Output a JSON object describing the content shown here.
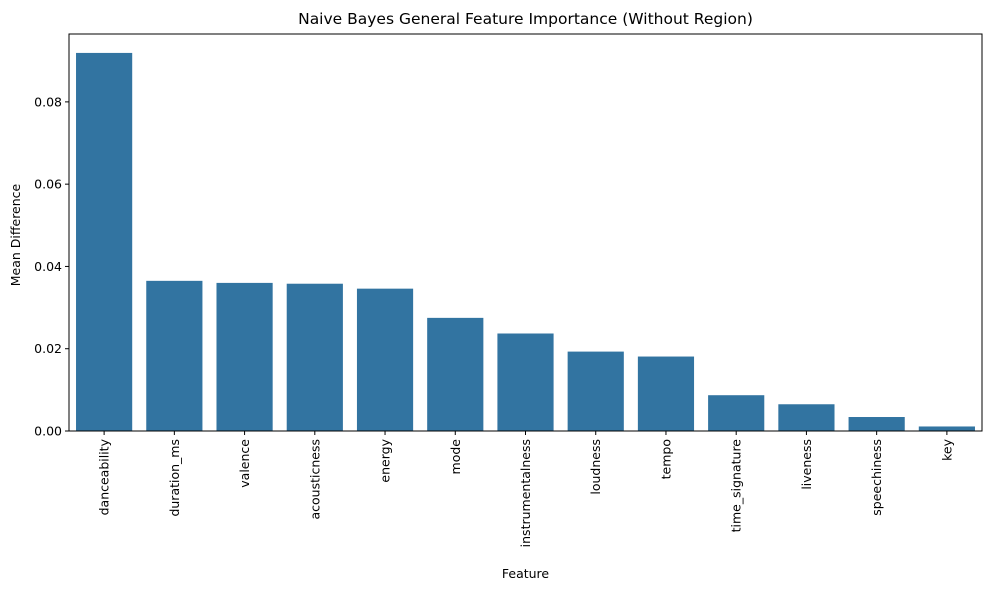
{
  "chart_data": {
    "type": "bar",
    "title": "Naive Bayes General Feature Importance (Without Region)",
    "xlabel": "Feature",
    "ylabel": "Mean Difference",
    "categories": [
      "danceability",
      "duration_ms",
      "valence",
      "acousticness",
      "energy",
      "mode",
      "instrumentalness",
      "loudness",
      "tempo",
      "time_signature",
      "liveness",
      "speechiness",
      "key"
    ],
    "values": [
      0.0919,
      0.0365,
      0.036,
      0.0358,
      0.0346,
      0.0275,
      0.0237,
      0.0193,
      0.0181,
      0.0087,
      0.0065,
      0.0034,
      0.0011
    ],
    "ylim": [
      0,
      0.0965
    ],
    "yticks": [
      0.0,
      0.02,
      0.04,
      0.06,
      0.08
    ],
    "ytick_labels": [
      "0.00",
      "0.02",
      "0.04",
      "0.06",
      "0.08"
    ],
    "bar_color": "#3274a1",
    "grid": false,
    "legend": "none"
  }
}
